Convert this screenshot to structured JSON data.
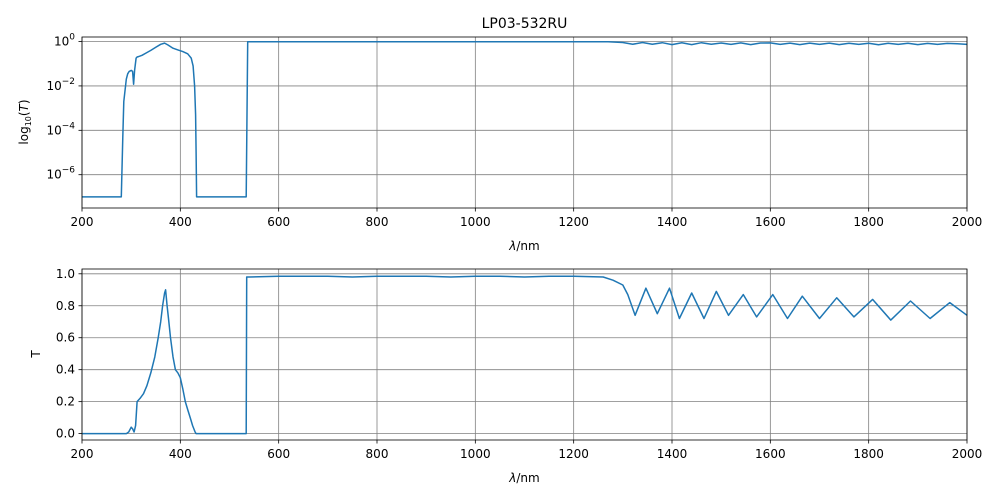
{
  "chart_data": [
    {
      "type": "line",
      "title": "LP03-532RU",
      "xlabel_italic": "λ",
      "xlabel_rest": "/nm",
      "ylabel_prefix": "log",
      "ylabel_sub": "10",
      "ylabel_arg": "T",
      "x_scale": "linear",
      "y_scale": "log",
      "xlim": [
        200,
        2000
      ],
      "ylim": [
        3.16e-08,
        1.6
      ],
      "grid": true,
      "color": "#1f77b4",
      "xticks": [
        200,
        400,
        600,
        800,
        1000,
        1200,
        1400,
        1600,
        1800,
        2000
      ],
      "xtick_labels": [
        "200",
        "400",
        "600",
        "800",
        "1000",
        "1200",
        "1400",
        "1600",
        "1800",
        "2000"
      ],
      "yticks": [
        1e-06,
        0.0001,
        0.01,
        1
      ],
      "ytick_mantissa": [
        "10",
        "10",
        "10",
        "10"
      ],
      "ytick_exponent": [
        "−6",
        "−4",
        "−2",
        "0"
      ],
      "series": [
        {
          "x": [
            200,
            280,
            283,
            285,
            288,
            290,
            293,
            296,
            300,
            303,
            305,
            307,
            310,
            312,
            315,
            318,
            322,
            330,
            340,
            350,
            360,
            368,
            375,
            385,
            395,
            405,
            415,
            422,
            426,
            429,
            431,
            432,
            433,
            534,
            537,
            600,
            800,
            1000,
            1200,
            1270,
            1300,
            1320,
            1340,
            1360,
            1380,
            1400,
            1420,
            1440,
            1460,
            1480,
            1500,
            1520,
            1540,
            1560,
            1580,
            1600,
            1620,
            1640,
            1660,
            1680,
            1700,
            1720,
            1740,
            1760,
            1780,
            1800,
            1820,
            1840,
            1860,
            1880,
            1900,
            1920,
            1940,
            1960,
            1980,
            2000
          ],
          "y": [
            1e-07,
            1e-07,
            5e-05,
            0.002,
            0.008,
            0.02,
            0.035,
            0.045,
            0.05,
            0.045,
            0.012,
            0.05,
            0.18,
            0.2,
            0.21,
            0.22,
            0.24,
            0.3,
            0.4,
            0.55,
            0.75,
            0.85,
            0.7,
            0.5,
            0.42,
            0.35,
            0.28,
            0.18,
            0.08,
            0.01,
            0.0005,
            1e-05,
            1e-07,
            1e-07,
            0.98,
            0.985,
            0.985,
            0.98,
            0.985,
            0.98,
            0.9,
            0.75,
            0.9,
            0.76,
            0.89,
            0.73,
            0.88,
            0.73,
            0.89,
            0.75,
            0.86,
            0.74,
            0.87,
            0.73,
            0.86,
            0.87,
            0.74,
            0.85,
            0.73,
            0.85,
            0.74,
            0.85,
            0.73,
            0.84,
            0.74,
            0.84,
            0.72,
            0.83,
            0.74,
            0.83,
            0.73,
            0.82,
            0.74,
            0.82,
            0.8,
            0.74
          ]
        }
      ]
    },
    {
      "type": "line",
      "title": "",
      "xlabel_italic": "λ",
      "xlabel_rest": "/nm",
      "ylabel": "T",
      "x_scale": "linear",
      "y_scale": "linear",
      "xlim": [
        200,
        2000
      ],
      "ylim": [
        -0.04,
        1.03
      ],
      "grid": true,
      "color": "#1f77b4",
      "xticks": [
        200,
        400,
        600,
        800,
        1000,
        1200,
        1400,
        1600,
        1800,
        2000
      ],
      "xtick_labels": [
        "200",
        "400",
        "600",
        "800",
        "1000",
        "1200",
        "1400",
        "1600",
        "1800",
        "2000"
      ],
      "yticks": [
        0,
        0.2,
        0.4,
        0.6,
        0.8,
        1.0
      ],
      "ytick_labels": [
        "0.0",
        "0.2",
        "0.4",
        "0.6",
        "0.8",
        "1.0"
      ],
      "series": [
        {
          "x": [
            200,
            290,
            295,
            300,
            303,
            306,
            309,
            312,
            318,
            325,
            332,
            340,
            348,
            355,
            360,
            364,
            368,
            370,
            373,
            376,
            380,
            385,
            390,
            395,
            400,
            405,
            410,
            415,
            420,
            425,
            430,
            432,
            534,
            535,
            540,
            600,
            650,
            700,
            750,
            800,
            850,
            900,
            950,
            1000,
            1050,
            1100,
            1150,
            1200,
            1260,
            1280,
            1300,
            1310,
            1325,
            1347,
            1370,
            1395,
            1415,
            1440,
            1465,
            1490,
            1515,
            1545,
            1572,
            1605,
            1635,
            1665,
            1700,
            1735,
            1770,
            1808,
            1845,
            1885,
            1925,
            1965,
            2000
          ],
          "y": [
            0,
            0,
            0.01,
            0.04,
            0.03,
            0.01,
            0.05,
            0.2,
            0.22,
            0.25,
            0.3,
            0.38,
            0.48,
            0.6,
            0.7,
            0.8,
            0.88,
            0.9,
            0.8,
            0.72,
            0.6,
            0.48,
            0.4,
            0.38,
            0.35,
            0.28,
            0.2,
            0.15,
            0.1,
            0.05,
            0.01,
            0,
            0,
            0.98,
            0.98,
            0.985,
            0.985,
            0.985,
            0.98,
            0.985,
            0.985,
            0.985,
            0.98,
            0.985,
            0.985,
            0.98,
            0.985,
            0.985,
            0.98,
            0.96,
            0.93,
            0.87,
            0.74,
            0.91,
            0.75,
            0.91,
            0.72,
            0.88,
            0.72,
            0.89,
            0.74,
            0.87,
            0.73,
            0.87,
            0.72,
            0.86,
            0.72,
            0.85,
            0.73,
            0.84,
            0.71,
            0.83,
            0.72,
            0.82,
            0.74
          ]
        }
      ]
    }
  ]
}
